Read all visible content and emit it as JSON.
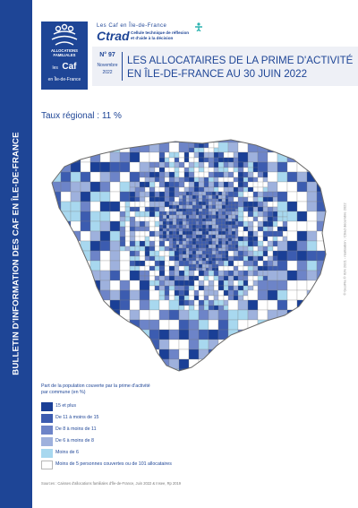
{
  "sidebar": {
    "text": "BULLETIN D'INFORMATION DES CAF EN ÎLE-DE-FRANCE"
  },
  "caf_logo": {
    "line1": "ALLOCATIONS",
    "line2": "FAMILIALES",
    "les": "les",
    "caf": "Caf",
    "region": "en Île-de-France",
    "color": "#1e4596"
  },
  "ctrad": {
    "top": "Les Caf en Île-de-France",
    "name": "Ctrad",
    "desc1": "Cellule technique de réflexion",
    "desc2": "et d'aide à la décision"
  },
  "issue": {
    "number": "N° 97",
    "month": "Novembre",
    "year": "2022"
  },
  "title": {
    "line1": "LES ALLOCATAIRES DE LA PRIME D'ACTIVITÉ",
    "line2": "EN ÎLE-DE-FRANCE AU 30 JUIN 2022"
  },
  "regional_rate": "Taux régional : 11 %",
  "map_credit": "© GeoFla © IGN 2021 - réalisation : Ctrad décembre 2022",
  "legend": {
    "title": "Part de la population couverte par la prime d'activité par commune (en %)",
    "items": [
      {
        "label": "15 et plus",
        "color": "#1a3f96"
      },
      {
        "label": "De 11 à moins de 15",
        "color": "#3c5cb0"
      },
      {
        "label": "De 8 à moins de 11",
        "color": "#6d84c8"
      },
      {
        "label": "De 6 à moins de 8",
        "color": "#9eb1dd"
      },
      {
        "label": "Moins de 6",
        "color": "#a8d8ef"
      },
      {
        "label": "Moins de 5 personnes couvertes ou de 101 allocataires",
        "color": "#ffffff"
      }
    ]
  },
  "sources": "Sources : Caisses d'allocations familiales d'Île-de-France, Juin 2022 & Insee, Rp 2019"
}
